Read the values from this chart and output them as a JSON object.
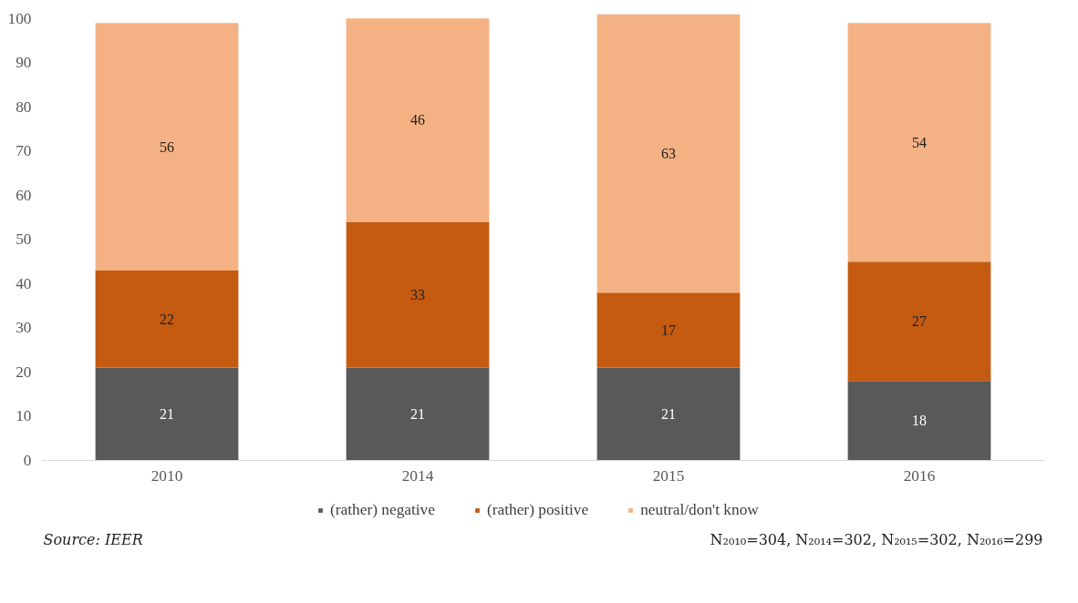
{
  "chart_data": {
    "type": "bar",
    "stacked": true,
    "categories": [
      "2010",
      "2014",
      "2015",
      "2016"
    ],
    "series": [
      {
        "name": "(rather) negative",
        "color": "#595959",
        "values": [
          21,
          21,
          21,
          18
        ]
      },
      {
        "name": "(rather) positive",
        "color": "#c55a11",
        "values": [
          22,
          33,
          17,
          27
        ]
      },
      {
        "name": "neutral/don't know",
        "color": "#f4b183",
        "values": [
          56,
          46,
          63,
          54
        ]
      }
    ],
    "ylim": [
      0,
      101
    ],
    "yticks": [
      0,
      10,
      20,
      30,
      40,
      50,
      60,
      70,
      80,
      90,
      100
    ],
    "grid": false,
    "legend": "bottom",
    "data_labels": true,
    "annotations": [
      "Source: IEER",
      "N₂₀₁₀=304, N₂₀₁₄=302, N₂₀₁₅=302, N₂₀₁₆=299"
    ]
  }
}
